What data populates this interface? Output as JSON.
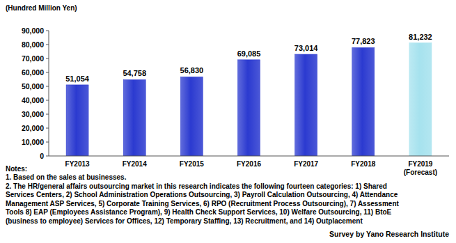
{
  "chart_data": {
    "type": "bar",
    "y_label": "(Hundred Million Yen)",
    "categories": [
      "FY2013",
      "FY2014",
      "FY2015",
      "FY2016",
      "FY2017",
      "FY2018",
      "FY2019 (Forecast)"
    ],
    "values": [
      51054,
      54758,
      56830,
      69085,
      73014,
      77823,
      81232
    ],
    "value_labels": [
      "51,054",
      "54,758",
      "56,830",
      "69,085",
      "73,014",
      "77,823",
      "81,232"
    ],
    "colors": [
      "#2b3ad0",
      "#2b3ad0",
      "#2b3ad0",
      "#2b3ad0",
      "#2b3ad0",
      "#2b3ad0",
      "#a6e2ee"
    ],
    "ylim": [
      0,
      90000
    ],
    "yticks": [
      0,
      {
        "value": 10000,
        "label": "10,000"
      },
      {
        "value": 20000,
        "label": "20,000"
      },
      {
        "value": 30000,
        "label": "30,000"
      },
      {
        "value": 40000,
        "label": "40,000"
      },
      {
        "value": 50000,
        "label": "50,000"
      },
      {
        "value": 60000,
        "label": "60,000"
      },
      {
        "value": 70000,
        "label": "70,000"
      },
      {
        "value": 80000,
        "label": "80,000"
      },
      {
        "value": 90000,
        "label": "90,000"
      }
    ],
    "grid": false,
    "data_labels": true,
    "notes": [
      "Notes:",
      "1. Based on the sales at businesses.",
      "2. The HR/general affairs outsourcing market in this research indicates the following fourteen categories: 1) Shared",
      "Services Centers, 2) School Administration Operations Outsourcing, 3) Payroll Calculation Outsourcing, 4) Attendance",
      "Management ASP Services, 5) Corporate Training Services, 6) RPO (Recruitment Process Outsourcing), 7) Assessment",
      "Tools 8) EAP (Employees Assistance Program), 9) Health Check Support Services, 10) Welfare Outsourcing, 11) BtoE",
      "(business to employee) Services for Offices, 12) Temporary Staffing, 13) Recruitment, and 14) Outplacement"
    ],
    "source": "Survey by Yano Research Institute"
  }
}
